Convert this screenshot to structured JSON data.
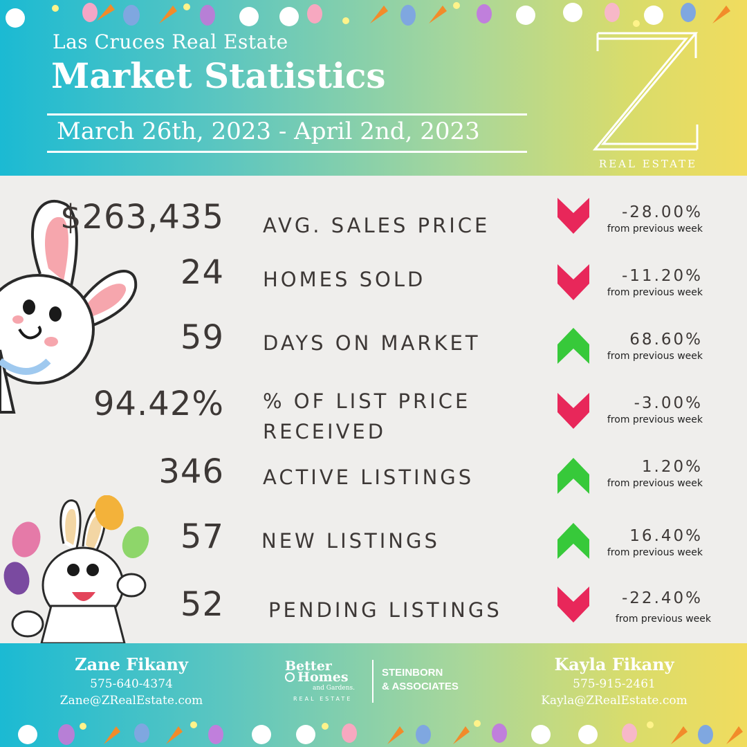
{
  "header": {
    "subtitle": "Las Cruces Real Estate",
    "title": "Market Statistics",
    "date_range": "March 26th, 2023 - April 2nd, 2023",
    "logo_letter": "Z",
    "logo_tagline": "REAL ESTATE"
  },
  "stats": [
    {
      "value": "$263,435",
      "label": "AVG. SALES PRICE",
      "change": "-28.00%",
      "direction": "down",
      "note": "from previous week"
    },
    {
      "value": "24",
      "label": "HOMES SOLD",
      "change": "-11.20%",
      "direction": "down",
      "note": "from previous week"
    },
    {
      "value": "59",
      "label": "DAYS ON MARKET",
      "change": "68.60%",
      "direction": "up",
      "note": "from previous week"
    },
    {
      "value": "94.42%",
      "label": "% OF LIST PRICE RECEIVED",
      "change": "-3.00%",
      "direction": "down",
      "note": "from previous week"
    },
    {
      "value": "346",
      "label": "ACTIVE LISTINGS",
      "change": "1.20%",
      "direction": "up",
      "note": "from previous week"
    },
    {
      "value": "57",
      "label": "NEW LISTINGS",
      "change": "16.40%",
      "direction": "up",
      "note": "from previous week"
    },
    {
      "value": "52",
      "label": "PENDING LISTINGS",
      "change": "-22.40%",
      "direction": "down",
      "note": "from previous week"
    }
  ],
  "footer": {
    "agent_left": {
      "name": "Zane Fikany",
      "phone": "575-640-4374",
      "email": "Zane@ZRealEstate.com"
    },
    "agent_right": {
      "name": "Kayla Fikany",
      "phone": "575-915-2461",
      "email": "Kayla@ZRealEstate.com"
    },
    "broker": {
      "line1": "Better",
      "line2": "Homes",
      "line3": "and Gardens.",
      "line4": "REAL ESTATE",
      "partner1": "STEINBORN",
      "partner2": "& ASSOCIATES"
    }
  },
  "colors": {
    "down": "#e8275a",
    "up": "#37c93a",
    "text": "#3d3836"
  }
}
